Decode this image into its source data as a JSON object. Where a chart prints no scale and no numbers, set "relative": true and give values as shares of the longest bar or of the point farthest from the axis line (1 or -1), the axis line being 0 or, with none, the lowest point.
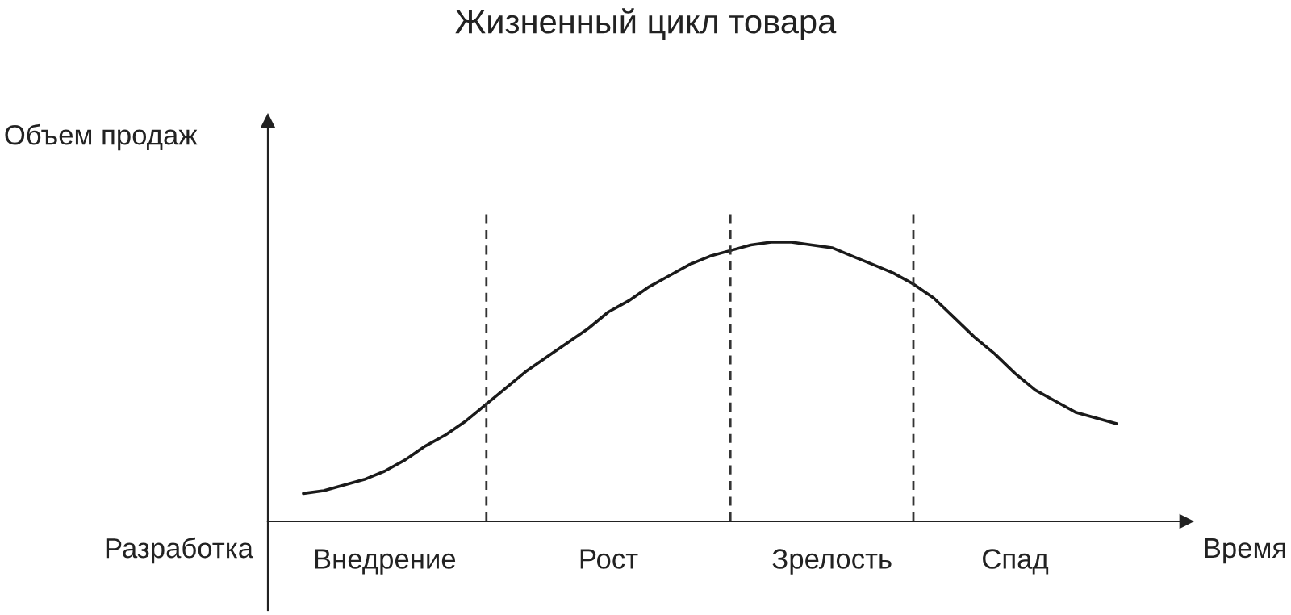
{
  "chart_data": {
    "type": "line",
    "title": "Жизненный цикл товара",
    "xlabel": "Время",
    "ylabel": "Объем продаж",
    "relative": true,
    "categories": [
      null,
      null,
      null,
      null,
      "Внедрение",
      null,
      null,
      null,
      null,
      null,
      null,
      null,
      null,
      null,
      null,
      "Рост",
      null,
      null,
      null,
      null,
      null,
      null,
      null,
      null,
      null,
      null,
      "Зрелость",
      null,
      null,
      null,
      null,
      null,
      null,
      null,
      null,
      "Спад",
      null,
      null,
      null,
      null,
      null
    ],
    "series": [
      {
        "color": "#1a1a1a",
        "values": [
          0.1,
          0.11,
          0.13,
          0.15,
          0.18,
          0.22,
          0.27,
          0.31,
          0.36,
          0.42,
          0.48,
          0.54,
          0.59,
          0.64,
          0.69,
          0.75,
          0.79,
          0.84,
          0.88,
          0.92,
          0.95,
          0.97,
          0.99,
          1,
          1,
          0.99,
          0.98,
          0.95,
          0.92,
          0.89,
          0.85,
          0.8,
          0.73,
          0.66,
          0.6,
          0.53,
          0.47,
          0.43,
          0.39,
          0.37,
          0.35
        ]
      }
    ],
    "annotations": [
      "Разработка"
    ],
    "grid": "x"
  }
}
